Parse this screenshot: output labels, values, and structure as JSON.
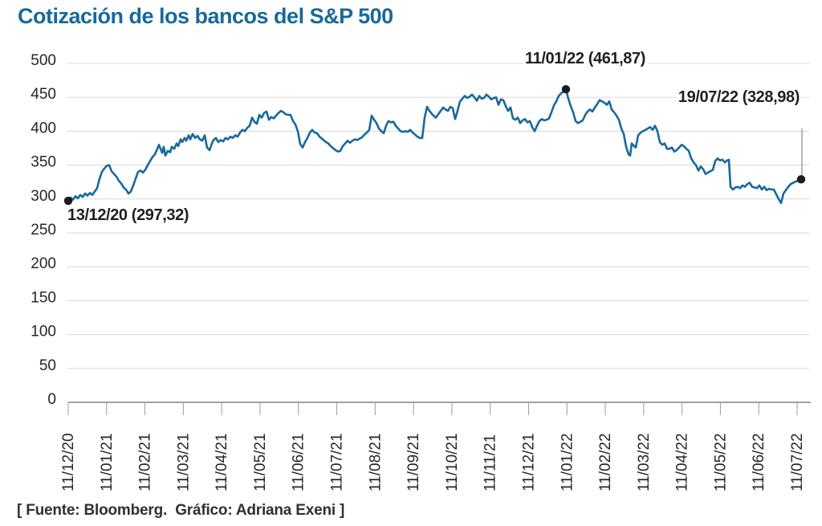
{
  "chart_data": {
    "type": "line",
    "title": "Cotización de los bancos del S&P 500",
    "source": "[ Fuente: Bloomberg.  Gráfico: Adriana Exeni ]",
    "xlabel": "",
    "ylabel": "",
    "ylim": [
      0,
      500
    ],
    "ytick_step": 50,
    "y_ticklabels": [
      500,
      450,
      400,
      350,
      300,
      250,
      200,
      150,
      100,
      50,
      0
    ],
    "x_ticklabels": [
      "11/12/20",
      "11/01/21",
      "11/02/21",
      "11/03/21",
      "11/04/21",
      "11/05/21",
      "11/06/21",
      "11/07/21",
      "11/08/21",
      "11/09/21",
      "11/10/21",
      "11/11/21",
      "11/12/21",
      "11/01/22",
      "11/02/22",
      "11/03/22",
      "11/04/22",
      "11/05/22",
      "11/06/22",
      "11/07/22"
    ],
    "grid": "horizontal",
    "legend": false,
    "colors": {
      "line": "#17699c",
      "title": "#17699c",
      "marker": "#1c1c1a",
      "gridline": "#d9d9d9"
    },
    "annotations": [
      {
        "label": "13/12/20 (297,32)",
        "date": "13/12/20",
        "value": 297.32,
        "point": [
          0,
          297.32
        ],
        "placement": "below-start"
      },
      {
        "label": "11/01/22 (461,87)",
        "date": "11/01/22",
        "value": 461.87,
        "point": [
          620,
          461.87
        ],
        "placement": "above-peak"
      },
      {
        "label": "19/07/22 (328,98)",
        "date": "19/07/22",
        "value": 328.98,
        "point": [
          913,
          328.98
        ],
        "placement": "right-with-leader"
      }
    ],
    "series": [
      {
        "name": "Cotización bancos S&P 500",
        "points": [
          [
            0,
            297.3
          ],
          [
            3,
            302
          ],
          [
            6,
            299
          ],
          [
            9,
            304
          ],
          [
            12,
            301
          ],
          [
            15,
            306
          ],
          [
            18,
            303
          ],
          [
            21,
            308
          ],
          [
            24,
            305
          ],
          [
            27,
            309
          ],
          [
            30,
            306
          ],
          [
            33,
            311
          ],
          [
            36,
            316
          ],
          [
            39,
            330
          ],
          [
            42,
            340
          ],
          [
            45,
            345
          ],
          [
            48,
            349
          ],
          [
            51,
            350
          ],
          [
            54,
            341
          ],
          [
            57,
            337
          ],
          [
            60,
            333
          ],
          [
            63,
            327
          ],
          [
            66,
            323
          ],
          [
            69,
            317
          ],
          [
            72,
            314
          ],
          [
            75,
            308
          ],
          [
            78,
            311
          ],
          [
            81,
            320
          ],
          [
            84,
            330
          ],
          [
            87,
            340
          ],
          [
            90,
            342
          ],
          [
            93,
            339
          ],
          [
            96,
            343
          ],
          [
            99,
            350
          ],
          [
            102,
            356
          ],
          [
            105,
            362
          ],
          [
            108,
            366
          ],
          [
            111,
            374
          ],
          [
            113,
            380
          ],
          [
            115,
            374
          ],
          [
            117,
            368
          ],
          [
            119,
            377
          ],
          [
            121,
            364
          ],
          [
            124,
            371
          ],
          [
            127,
            369
          ],
          [
            129,
            377
          ],
          [
            132,
            374
          ],
          [
            135,
            382
          ],
          [
            137,
            378
          ],
          [
            140,
            388
          ],
          [
            142,
            384
          ],
          [
            145,
            390
          ],
          [
            147,
            386
          ],
          [
            150,
            394
          ],
          [
            152,
            388
          ],
          [
            155,
            396
          ],
          [
            158,
            390
          ],
          [
            161,
            393
          ],
          [
            164,
            388
          ],
          [
            167,
            386
          ],
          [
            170,
            394
          ],
          [
            173,
            376
          ],
          [
            176,
            372
          ],
          [
            179,
            382
          ],
          [
            181,
            387
          ],
          [
            184,
            390
          ],
          [
            187,
            384
          ],
          [
            190,
            387
          ],
          [
            193,
            385
          ],
          [
            196,
            390
          ],
          [
            199,
            388
          ],
          [
            202,
            392
          ],
          [
            205,
            390
          ],
          [
            208,
            394
          ],
          [
            211,
            392
          ],
          [
            214,
            398
          ],
          [
            217,
            402
          ],
          [
            220,
            400
          ],
          [
            223,
            405
          ],
          [
            226,
            408
          ],
          [
            229,
            420
          ],
          [
            232,
            414
          ],
          [
            235,
            411
          ],
          [
            238,
            424
          ],
          [
            241,
            420
          ],
          [
            244,
            427
          ],
          [
            247,
            429
          ],
          [
            250,
            417
          ],
          [
            253,
            421
          ],
          [
            256,
            419
          ],
          [
            259,
            423
          ],
          [
            262,
            427
          ],
          [
            265,
            430
          ],
          [
            268,
            428
          ],
          [
            271,
            425
          ],
          [
            274,
            424
          ],
          [
            277,
            424
          ],
          [
            280,
            415
          ],
          [
            283,
            410
          ],
          [
            286,
            400
          ],
          [
            289,
            381
          ],
          [
            292,
            376
          ],
          [
            295,
            384
          ],
          [
            298,
            390
          ],
          [
            301,
            398
          ],
          [
            304,
            402
          ],
          [
            307,
            398
          ],
          [
            310,
            397
          ],
          [
            313,
            392
          ],
          [
            315,
            390
          ],
          [
            318,
            387
          ],
          [
            321,
            384
          ],
          [
            324,
            382
          ],
          [
            327,
            378
          ],
          [
            330,
            375
          ],
          [
            333,
            372
          ],
          [
            336,
            370
          ],
          [
            339,
            371
          ],
          [
            342,
            378
          ],
          [
            345,
            382
          ],
          [
            348,
            386
          ],
          [
            351,
            383
          ],
          [
            354,
            386
          ],
          [
            357,
            388
          ],
          [
            360,
            387
          ],
          [
            363,
            389
          ],
          [
            366,
            391
          ],
          [
            369,
            395
          ],
          [
            372,
            398
          ],
          [
            375,
            402
          ],
          [
            378,
            423
          ],
          [
            381,
            417
          ],
          [
            384,
            412
          ],
          [
            387,
            404
          ],
          [
            390,
            400
          ],
          [
            393,
            397
          ],
          [
            396,
            408
          ],
          [
            399,
            415
          ],
          [
            402,
            413
          ],
          [
            405,
            414
          ],
          [
            408,
            408
          ],
          [
            411,
            404
          ],
          [
            414,
            400
          ],
          [
            417,
            399
          ],
          [
            420,
            400
          ],
          [
            423,
            399
          ],
          [
            426,
            402
          ],
          [
            429,
            398
          ],
          [
            432,
            395
          ],
          [
            435,
            392
          ],
          [
            438,
            390
          ],
          [
            441,
            390
          ],
          [
            444,
            420
          ],
          [
            447,
            436
          ],
          [
            450,
            430
          ],
          [
            452,
            427
          ],
          [
            455,
            423
          ],
          [
            458,
            420
          ],
          [
            461,
            425
          ],
          [
            464,
            430
          ],
          [
            467,
            435
          ],
          [
            470,
            432
          ],
          [
            473,
            430
          ],
          [
            476,
            436
          ],
          [
            479,
            434
          ],
          [
            482,
            418
          ],
          [
            485,
            430
          ],
          [
            488,
            444
          ],
          [
            491,
            448
          ],
          [
            494,
            452
          ],
          [
            497,
            449
          ],
          [
            500,
            451
          ],
          [
            503,
            454
          ],
          [
            506,
            450
          ],
          [
            509,
            445
          ],
          [
            512,
            452
          ],
          [
            515,
            448
          ],
          [
            518,
            449
          ],
          [
            521,
            454
          ],
          [
            524,
            451
          ],
          [
            527,
            447
          ],
          [
            530,
            449
          ],
          [
            533,
            450
          ],
          [
            536,
            439
          ],
          [
            539,
            447
          ],
          [
            542,
            446
          ],
          [
            545,
            437
          ],
          [
            548,
            430
          ],
          [
            551,
            435
          ],
          [
            554,
            419
          ],
          [
            557,
            417
          ],
          [
            560,
            420
          ],
          [
            563,
            412
          ],
          [
            566,
            416
          ],
          [
            569,
            418
          ],
          [
            572,
            413
          ],
          [
            575,
            415
          ],
          [
            578,
            406
          ],
          [
            581,
            400
          ],
          [
            584,
            408
          ],
          [
            587,
            415
          ],
          [
            590,
            418
          ],
          [
            593,
            416
          ],
          [
            596,
            417
          ],
          [
            599,
            419
          ],
          [
            602,
            428
          ],
          [
            605,
            438
          ],
          [
            608,
            444
          ],
          [
            611,
            452
          ],
          [
            614,
            456
          ],
          [
            617,
            459
          ],
          [
            620,
            461.9
          ],
          [
            623,
            448
          ],
          [
            626,
            437
          ],
          [
            629,
            428
          ],
          [
            632,
            415
          ],
          [
            635,
            412
          ],
          [
            638,
            414
          ],
          [
            641,
            416
          ],
          [
            644,
            424
          ],
          [
            647,
            429
          ],
          [
            650,
            432
          ],
          [
            653,
            429
          ],
          [
            656,
            435
          ],
          [
            659,
            440
          ],
          [
            662,
            446
          ],
          [
            665,
            444
          ],
          [
            668,
            442
          ],
          [
            671,
            439
          ],
          [
            674,
            444
          ],
          [
            677,
            432
          ],
          [
            680,
            428
          ],
          [
            683,
            423
          ],
          [
            686,
            417
          ],
          [
            689,
            404
          ],
          [
            692,
            396
          ],
          [
            695,
            377
          ],
          [
            698,
            366
          ],
          [
            700,
            364
          ],
          [
            702,
            382
          ],
          [
            705,
            378
          ],
          [
            707,
            376
          ],
          [
            710,
            394
          ],
          [
            713,
            398
          ],
          [
            716,
            400
          ],
          [
            719,
            402
          ],
          [
            722,
            404
          ],
          [
            725,
            406
          ],
          [
            728,
            402
          ],
          [
            731,
            408
          ],
          [
            734,
            400
          ],
          [
            737,
            384
          ],
          [
            740,
            380
          ],
          [
            743,
            382
          ],
          [
            746,
            374
          ],
          [
            749,
            374
          ],
          [
            752,
            376
          ],
          [
            755,
            370
          ],
          [
            758,
            372
          ],
          [
            761,
            376
          ],
          [
            764,
            380
          ],
          [
            767,
            378
          ],
          [
            770,
            374
          ],
          [
            773,
            371
          ],
          [
            776,
            360
          ],
          [
            779,
            354
          ],
          [
            782,
            350
          ],
          [
            785,
            342
          ],
          [
            788,
            348
          ],
          [
            791,
            344
          ],
          [
            794,
            337
          ],
          [
            797,
            339
          ],
          [
            800,
            341
          ],
          [
            803,
            343
          ],
          [
            806,
            356
          ],
          [
            809,
            360
          ],
          [
            812,
            357
          ],
          [
            815,
            358
          ],
          [
            818,
            354
          ],
          [
            821,
            357
          ],
          [
            823,
            358
          ],
          [
            825,
            318
          ],
          [
            828,
            314
          ],
          [
            831,
            317
          ],
          [
            834,
            318
          ],
          [
            837,
            316
          ],
          [
            840,
            320
          ],
          [
            843,
            318
          ],
          [
            846,
            322
          ],
          [
            849,
            324
          ],
          [
            852,
            318
          ],
          [
            855,
            317
          ],
          [
            858,
            316
          ],
          [
            861,
            320
          ],
          [
            864,
            314
          ],
          [
            867,
            318
          ],
          [
            870,
            313
          ],
          [
            873,
            315
          ],
          [
            876,
            314
          ],
          [
            879,
            314
          ],
          [
            882,
            307
          ],
          [
            885,
            300
          ],
          [
            888,
            294
          ],
          [
            891,
            308
          ],
          [
            894,
            313
          ],
          [
            897,
            318
          ],
          [
            900,
            322
          ],
          [
            905,
            325
          ],
          [
            909,
            327
          ],
          [
            913,
            329
          ]
        ]
      }
    ]
  }
}
